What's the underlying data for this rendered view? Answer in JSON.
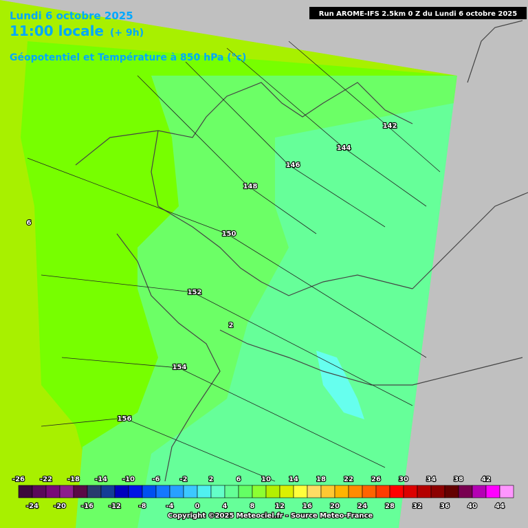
{
  "header": {
    "date": "Lundi 6 octobre 2025",
    "time": "11:00 locale",
    "offset": "(+ 9h)",
    "parameter": "Géopotentiel et Température à 850 hPa (°c)",
    "run": "Run AROME-IFS 2.5km 0 Z du Lundi 6 octobre 2025"
  },
  "contour_labels": [
    "142",
    "144",
    "146",
    "148",
    "150",
    "152",
    "154",
    "156",
    "6",
    "2"
  ],
  "legend": {
    "top_labels": [
      -26,
      -22,
      -18,
      -14,
      -10,
      -6,
      -2,
      2,
      6,
      10,
      14,
      18,
      22,
      26,
      30,
      34,
      38,
      42
    ],
    "bottom_labels": [
      -24,
      -20,
      -16,
      -12,
      -8,
      -4,
      0,
      4,
      8,
      12,
      16,
      20,
      24,
      28,
      32,
      36,
      40,
      44
    ],
    "colors": [
      "#3c0a3c",
      "#5a0a5a",
      "#780a78",
      "#8c1e8c",
      "#5a0a46",
      "#283c6e",
      "#143c96",
      "#0000be",
      "#0014e6",
      "#0050f0",
      "#1478ff",
      "#28a0ff",
      "#3cc8ff",
      "#50f0f0",
      "#64ffc8",
      "#64ff96",
      "#64ff64",
      "#8cff32",
      "#b4f000",
      "#dcf000",
      "#ffff3c",
      "#ffdc64",
      "#ffc832",
      "#ffb400",
      "#ff8c00",
      "#ff6400",
      "#ff3c00",
      "#ff0000",
      "#dc0000",
      "#b40000",
      "#8c0000",
      "#640000",
      "#780050",
      "#b400b4",
      "#ff00ff",
      "#ff96ff"
    ]
  },
  "copyright": "Copyright ©2025 Meteociel.fr - Source Meteo-France"
}
